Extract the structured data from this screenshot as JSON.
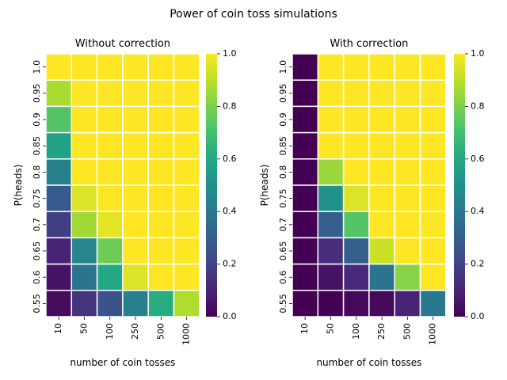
{
  "suptitle": "Power of coin toss simulations",
  "chart_data": [
    {
      "type": "heatmap",
      "title": "Without correction",
      "xlabel": "number of coin tosses",
      "ylabel": "P(heads)",
      "x": [
        "10",
        "50",
        "100",
        "250",
        "500",
        "1000"
      ],
      "y": [
        "1.0",
        "0.95",
        "0.9",
        "0.85",
        "0.8",
        "0.75",
        "0.7",
        "0.65",
        "0.6",
        "0.55"
      ],
      "values": [
        [
          1.0,
          1.0,
          1.0,
          1.0,
          1.0,
          1.0
        ],
        [
          0.87,
          1.0,
          1.0,
          1.0,
          1.0,
          1.0
        ],
        [
          0.73,
          1.0,
          1.0,
          1.0,
          1.0,
          1.0
        ],
        [
          0.57,
          1.0,
          1.0,
          1.0,
          1.0,
          1.0
        ],
        [
          0.43,
          1.0,
          1.0,
          1.0,
          1.0,
          1.0
        ],
        [
          0.28,
          0.95,
          1.0,
          1.0,
          1.0,
          1.0
        ],
        [
          0.18,
          0.86,
          0.96,
          1.0,
          1.0,
          1.0
        ],
        [
          0.1,
          0.45,
          0.78,
          1.0,
          1.0,
          1.0
        ],
        [
          0.05,
          0.38,
          0.6,
          0.95,
          1.0,
          1.0
        ],
        [
          0.03,
          0.15,
          0.25,
          0.43,
          0.62,
          0.88
        ]
      ],
      "colorbar": {
        "min": 0.0,
        "max": 1.0,
        "ticks": [
          "0.0",
          "0.2",
          "0.4",
          "0.6",
          "0.8",
          "1.0"
        ]
      },
      "colormap": "viridis"
    },
    {
      "type": "heatmap",
      "title": "With correction",
      "xlabel": "number of coin tosses",
      "ylabel": "P(heads)",
      "x": [
        "10",
        "50",
        "100",
        "250",
        "500",
        "1000"
      ],
      "y": [
        "1.0",
        "0.95",
        "0.9",
        "0.85",
        "0.8",
        "0.75",
        "0.7",
        "0.65",
        "0.6",
        "0.55"
      ],
      "values": [
        [
          0.0,
          1.0,
          1.0,
          1.0,
          1.0,
          1.0
        ],
        [
          0.0,
          1.0,
          1.0,
          1.0,
          1.0,
          1.0
        ],
        [
          0.0,
          1.0,
          1.0,
          1.0,
          1.0,
          1.0
        ],
        [
          0.0,
          1.0,
          1.0,
          1.0,
          1.0,
          1.0
        ],
        [
          0.0,
          0.85,
          1.0,
          1.0,
          1.0,
          1.0
        ],
        [
          0.0,
          0.5,
          0.95,
          1.0,
          1.0,
          1.0
        ],
        [
          0.0,
          0.3,
          0.73,
          1.0,
          1.0,
          1.0
        ],
        [
          0.0,
          0.13,
          0.3,
          0.92,
          1.0,
          1.0
        ],
        [
          0.0,
          0.05,
          0.12,
          0.38,
          0.82,
          1.0
        ],
        [
          0.0,
          0.0,
          0.02,
          0.02,
          0.1,
          0.4
        ]
      ],
      "colorbar": {
        "min": 0.0,
        "max": 1.0,
        "ticks": [
          "0.0",
          "0.2",
          "0.4",
          "0.6",
          "0.8",
          "1.0"
        ]
      },
      "colormap": "viridis"
    }
  ]
}
